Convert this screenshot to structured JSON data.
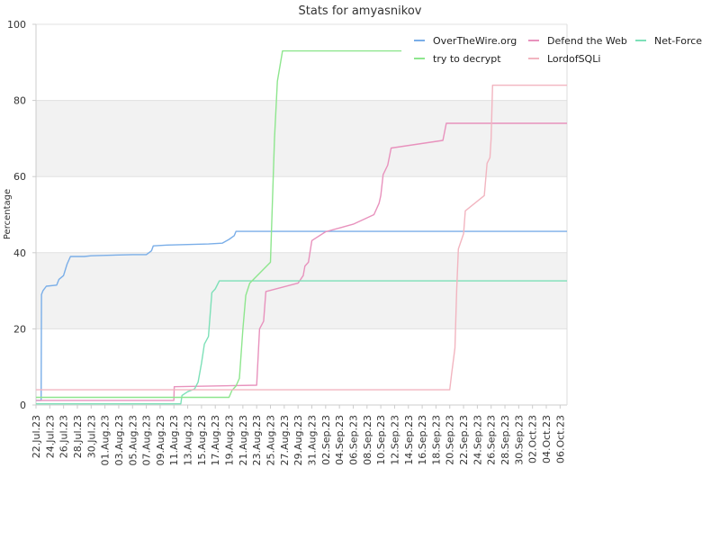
{
  "chart_data": {
    "type": "line",
    "title": "Stats for amyasnikov",
    "xlabel": "",
    "ylabel": "Percentage",
    "ylim": [
      0,
      100
    ],
    "yticks": [
      0,
      20,
      40,
      60,
      80,
      100
    ],
    "xlim": [
      "2023-07-22",
      "2023-10-07"
    ],
    "xtick_labels": [
      "22.Jul.23",
      "24.Jul.23",
      "26.Jul.23",
      "28.Jul.23",
      "30.Jul.23",
      "01.Aug.23",
      "03.Aug.23",
      "05.Aug.23",
      "07.Aug.23",
      "09.Aug.23",
      "11.Aug.23",
      "13.Aug.23",
      "15.Aug.23",
      "17.Aug.23",
      "19.Aug.23",
      "21.Aug.23",
      "23.Aug.23",
      "25.Aug.23",
      "27.Aug.23",
      "29.Aug.23",
      "31.Aug.23",
      "02.Sep.23",
      "04.Sep.23",
      "06.Sep.23",
      "08.Sep.23",
      "10.Sep.23",
      "12.Sep.23",
      "14.Sep.23",
      "16.Sep.23",
      "18.Sep.23",
      "20.Sep.23",
      "22.Sep.23",
      "24.Sep.23",
      "26.Sep.23",
      "28.Sep.23",
      "30.Sep.23",
      "02.Oct.23",
      "04.Oct.23",
      "06.Oct.23"
    ],
    "grid": "horizontal alternating bands",
    "legend_position": "top-right",
    "series": [
      {
        "name": "OverTheWire.org",
        "color": "#7aaee8",
        "points": [
          [
            "2023-07-22",
            1.2
          ],
          [
            "2023-07-22T18",
            1.2
          ],
          [
            "2023-07-22T19",
            29
          ],
          [
            "2023-07-23",
            30
          ],
          [
            "2023-07-23T12",
            31.2
          ],
          [
            "2023-07-25",
            31.5
          ],
          [
            "2023-07-25T08",
            33
          ],
          [
            "2023-07-26",
            34
          ],
          [
            "2023-07-26T12",
            37
          ],
          [
            "2023-07-27",
            39
          ],
          [
            "2023-07-29",
            39
          ],
          [
            "2023-07-30",
            39.2
          ],
          [
            "2023-08-05",
            39.5
          ],
          [
            "2023-08-07",
            39.5
          ],
          [
            "2023-08-07T18",
            40.5
          ],
          [
            "2023-08-08",
            41.8
          ],
          [
            "2023-08-10",
            42
          ],
          [
            "2023-08-16",
            42.3
          ],
          [
            "2023-08-18",
            42.5
          ],
          [
            "2023-08-19",
            43.5
          ],
          [
            "2023-08-19T18",
            44.5
          ],
          [
            "2023-08-20",
            45.6
          ],
          [
            "2023-10-07",
            45.6
          ]
        ]
      },
      {
        "name": "Defend the Web",
        "color": "#e892bd",
        "points": [
          [
            "2023-07-22",
            1.2
          ],
          [
            "2023-08-11",
            1.2
          ],
          [
            "2023-08-11T01",
            4.8
          ],
          [
            "2023-08-23",
            5.2
          ],
          [
            "2023-08-23T10",
            20
          ],
          [
            "2023-08-24",
            22
          ],
          [
            "2023-08-24T08",
            29.8
          ],
          [
            "2023-08-29",
            32
          ],
          [
            "2023-08-29T18",
            34
          ],
          [
            "2023-08-30",
            36.5
          ],
          [
            "2023-08-30T12",
            37.5
          ],
          [
            "2023-08-31",
            43.2
          ],
          [
            "2023-09-02",
            45.5
          ],
          [
            "2023-09-06",
            47.5
          ],
          [
            "2023-09-09",
            50
          ],
          [
            "2023-09-09T18",
            53
          ],
          [
            "2023-09-10",
            55
          ],
          [
            "2023-09-10T08",
            60.5
          ],
          [
            "2023-09-11",
            63
          ],
          [
            "2023-09-11T12",
            67.5
          ],
          [
            "2023-09-19",
            69.5
          ],
          [
            "2023-09-19T12",
            74
          ],
          [
            "2023-10-07",
            74
          ]
        ]
      },
      {
        "name": "Net-Force",
        "color": "#7de0b8",
        "points": [
          [
            "2023-07-22",
            0.3
          ],
          [
            "2023-08-12",
            0.3
          ],
          [
            "2023-08-12T04",
            2.5
          ],
          [
            "2023-08-13",
            3.5
          ],
          [
            "2023-08-14",
            4.2
          ],
          [
            "2023-08-14T12",
            6
          ],
          [
            "2023-08-15",
            11
          ],
          [
            "2023-08-15T10",
            16
          ],
          [
            "2023-08-16",
            18
          ],
          [
            "2023-08-16T12",
            29.5
          ],
          [
            "2023-08-17",
            30.5
          ],
          [
            "2023-08-17T14",
            32.6
          ],
          [
            "2023-10-07",
            32.6
          ]
        ]
      },
      {
        "name": "try to decrypt",
        "color": "#8ee68e",
        "points": [
          [
            "2023-07-22",
            2
          ],
          [
            "2023-08-19",
            2
          ],
          [
            "2023-08-19T10",
            3.8
          ],
          [
            "2023-08-20",
            5
          ],
          [
            "2023-08-20T12",
            7
          ],
          [
            "2023-08-21",
            20
          ],
          [
            "2023-08-21T10",
            28.8
          ],
          [
            "2023-08-22",
            32
          ],
          [
            "2023-08-25",
            37.5
          ],
          [
            "2023-08-25T14",
            70
          ],
          [
            "2023-08-26",
            85
          ],
          [
            "2023-08-26T18",
            93
          ],
          [
            "2023-09-13",
            93
          ]
        ]
      },
      {
        "name": "LordofSQLi",
        "color": "#f2b5c0",
        "points": [
          [
            "2023-07-22",
            4
          ],
          [
            "2023-09-20",
            4
          ],
          [
            "2023-09-20T06",
            8
          ],
          [
            "2023-09-20T18",
            15
          ],
          [
            "2023-09-21",
            30
          ],
          [
            "2023-09-21T06",
            41
          ],
          [
            "2023-09-22",
            45
          ],
          [
            "2023-09-22T06",
            51
          ],
          [
            "2023-09-25",
            55
          ],
          [
            "2023-09-25T10",
            63.5
          ],
          [
            "2023-09-25T20",
            65
          ],
          [
            "2023-09-26",
            70
          ],
          [
            "2023-09-26T05",
            84
          ],
          [
            "2023-10-07",
            84
          ]
        ]
      }
    ]
  }
}
